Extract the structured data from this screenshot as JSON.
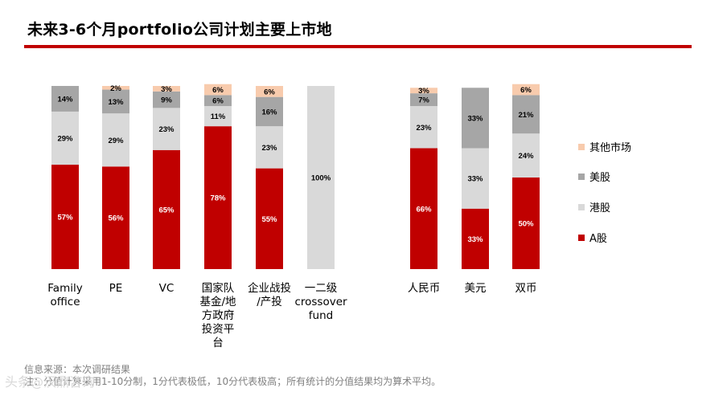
{
  "title": "未来3-6个月portfolio公司计划主要上市地",
  "footnotes": {
    "source": "信息来源：本次调研结果",
    "note": "注：分值计算采用1-10分制，1分代表极低，10分代表极高；所有统计的分值结果均为算术平均。"
  },
  "watermark": "头条@汉鼎咨询",
  "colors": {
    "a_share": "#c00000",
    "hk_share": "#d9d9d9",
    "us_share": "#a6a6a6",
    "other": "#f8cbad",
    "title_rule": "#c00000"
  },
  "chart_data": {
    "type": "bar",
    "stacked": true,
    "percent": true,
    "title": "未来3-6个月portfolio公司计划主要上市地",
    "ylim": [
      0,
      100
    ],
    "legend_position": "right",
    "groups": [
      {
        "name": "investor_type",
        "categories": [
          [
            "Family",
            "office"
          ],
          [
            "PE"
          ],
          [
            "VC"
          ],
          [
            "国家队",
            "基金/地",
            "方政府",
            "投资平",
            "台"
          ],
          [
            "企业战投",
            "/产投"
          ],
          [
            "一二级",
            "crossover",
            "fund"
          ]
        ],
        "series": [
          {
            "name": "A股",
            "values": [
              57,
              56,
              65,
              78,
              55,
              0
            ]
          },
          {
            "name": "港股",
            "values": [
              29,
              29,
              23,
              11,
              23,
              100
            ]
          },
          {
            "name": "美股",
            "values": [
              14,
              13,
              9,
              6,
              16,
              0
            ]
          },
          {
            "name": "其他市场",
            "values": [
              0,
              2,
              3,
              6,
              6,
              0
            ]
          }
        ]
      },
      {
        "name": "fund_currency",
        "categories": [
          [
            "人民币"
          ],
          [
            "美元"
          ],
          [
            "双币"
          ]
        ],
        "series": [
          {
            "name": "A股",
            "values": [
              66,
              33,
              50
            ]
          },
          {
            "name": "港股",
            "values": [
              23,
              33,
              24
            ]
          },
          {
            "name": "美股",
            "values": [
              7,
              33,
              21
            ]
          },
          {
            "name": "其他市场",
            "values": [
              3,
              0,
              6
            ]
          }
        ]
      }
    ],
    "legend": [
      "其他市场",
      "美股",
      "港股",
      "A股"
    ]
  }
}
